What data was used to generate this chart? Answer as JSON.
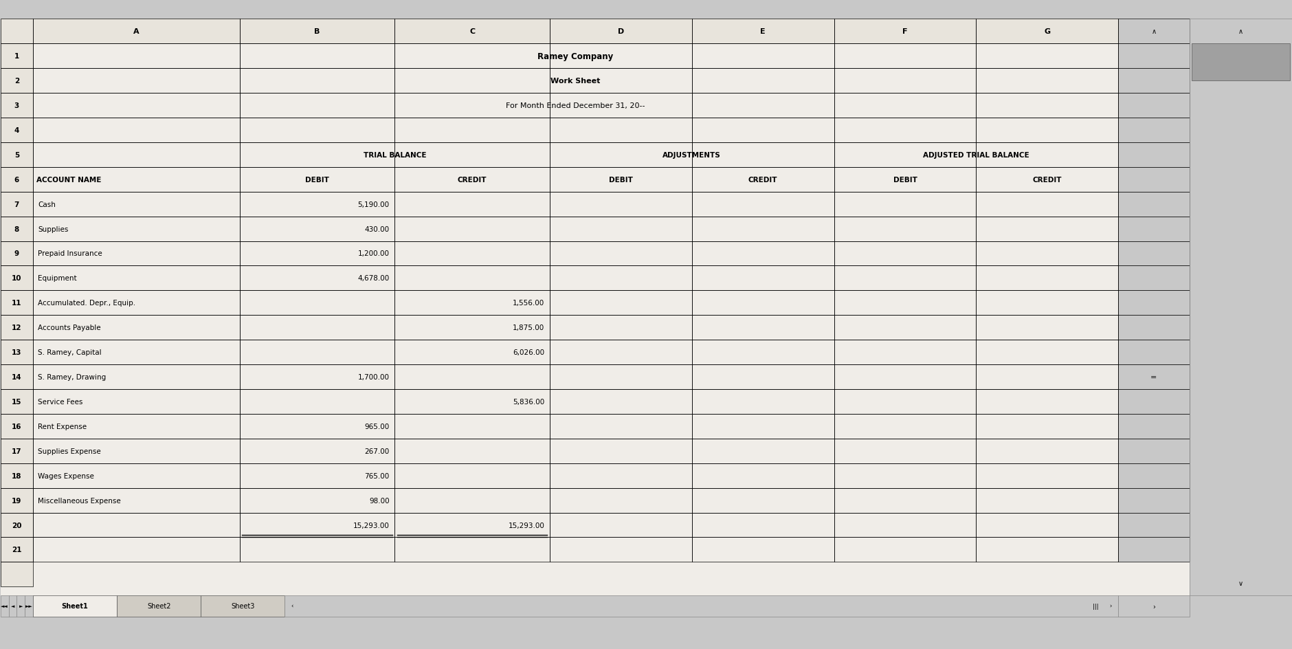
{
  "title1": "Ramey Company",
  "title2": "Work Sheet",
  "title3": "For Month Ended December 31, 20--",
  "col_headers": [
    "",
    "A",
    "B",
    "C",
    "D",
    "E",
    "F",
    "G"
  ],
  "row_numbers": [
    "1",
    "2",
    "3",
    "4",
    "5",
    "6",
    "7",
    "8",
    "9",
    "10",
    "11",
    "12",
    "13",
    "14",
    "15",
    "16",
    "17",
    "18",
    "19",
    "20",
    "21"
  ],
  "section_headers": {
    "row5_bc": "TRIAL BALANCE",
    "row5_de": "ADJUSTMENTS",
    "row5_fg": "ADJUSTED TRIAL BALANCE"
  },
  "col6_labels": [
    "ACCOUNT NAME",
    "DEBIT",
    "CREDIT",
    "DEBIT",
    "CREDIT",
    "DEBIT",
    "CREDIT"
  ],
  "accounts": [
    {
      "name": "Cash",
      "tb_debit": "5,190.00",
      "tb_credit": "",
      "adj_debit": "",
      "adj_credit": "",
      "atb_debit": "",
      "atb_credit": ""
    },
    {
      "name": "Supplies",
      "tb_debit": "430.00",
      "tb_credit": "",
      "adj_debit": "",
      "adj_credit": "",
      "atb_debit": "",
      "atb_credit": ""
    },
    {
      "name": "Prepaid Insurance",
      "tb_debit": "1,200.00",
      "tb_credit": "",
      "adj_debit": "",
      "adj_credit": "",
      "atb_debit": "",
      "atb_credit": ""
    },
    {
      "name": "Equipment",
      "tb_debit": "4,678.00",
      "tb_credit": "",
      "adj_debit": "",
      "adj_credit": "",
      "atb_debit": "",
      "atb_credit": ""
    },
    {
      "name": "Accumulated. Depr., Equip.",
      "tb_debit": "",
      "tb_credit": "1,556.00",
      "adj_debit": "",
      "adj_credit": "",
      "atb_debit": "",
      "atb_credit": ""
    },
    {
      "name": "Accounts Payable",
      "tb_debit": "",
      "tb_credit": "1,875.00",
      "adj_debit": "",
      "adj_credit": "",
      "atb_debit": "",
      "atb_credit": ""
    },
    {
      "name": "S. Ramey, Capital",
      "tb_debit": "",
      "tb_credit": "6,026.00",
      "adj_debit": "",
      "adj_credit": "",
      "atb_debit": "",
      "atb_credit": ""
    },
    {
      "name": "S. Ramey, Drawing",
      "tb_debit": "1,700.00",
      "tb_credit": "",
      "adj_debit": "",
      "adj_credit": "",
      "atb_debit": "",
      "atb_credit": ""
    },
    {
      "name": "Service Fees",
      "tb_debit": "",
      "tb_credit": "5,836.00",
      "adj_debit": "",
      "adj_credit": "",
      "atb_debit": "",
      "atb_credit": ""
    },
    {
      "name": "Rent Expense",
      "tb_debit": "965.00",
      "tb_credit": "",
      "adj_debit": "",
      "adj_credit": "",
      "atb_debit": "",
      "atb_credit": ""
    },
    {
      "name": "Supplies Expense",
      "tb_debit": "267.00",
      "tb_credit": "",
      "adj_debit": "",
      "adj_credit": "",
      "atb_debit": "",
      "atb_credit": ""
    },
    {
      "name": "Wages Expense",
      "tb_debit": "765.00",
      "tb_credit": "",
      "adj_debit": "",
      "adj_credit": "",
      "atb_debit": "",
      "atb_credit": ""
    },
    {
      "name": "Miscellaneous Expense",
      "tb_debit": "98.00",
      "tb_credit": "",
      "adj_debit": "",
      "adj_credit": "",
      "atb_debit": "",
      "atb_credit": ""
    }
  ],
  "totals": {
    "tb_debit": "15,293.00",
    "tb_credit": "15,293.00"
  },
  "bg_color": "#c8c8c8",
  "cell_bg": "#f0ede8",
  "header_cell_bg": "#e8e4dc",
  "grid_color": "#000000",
  "text_color": "#000000",
  "tab_active": "#f0ede8",
  "tab_inactive": "#d0ccc4"
}
